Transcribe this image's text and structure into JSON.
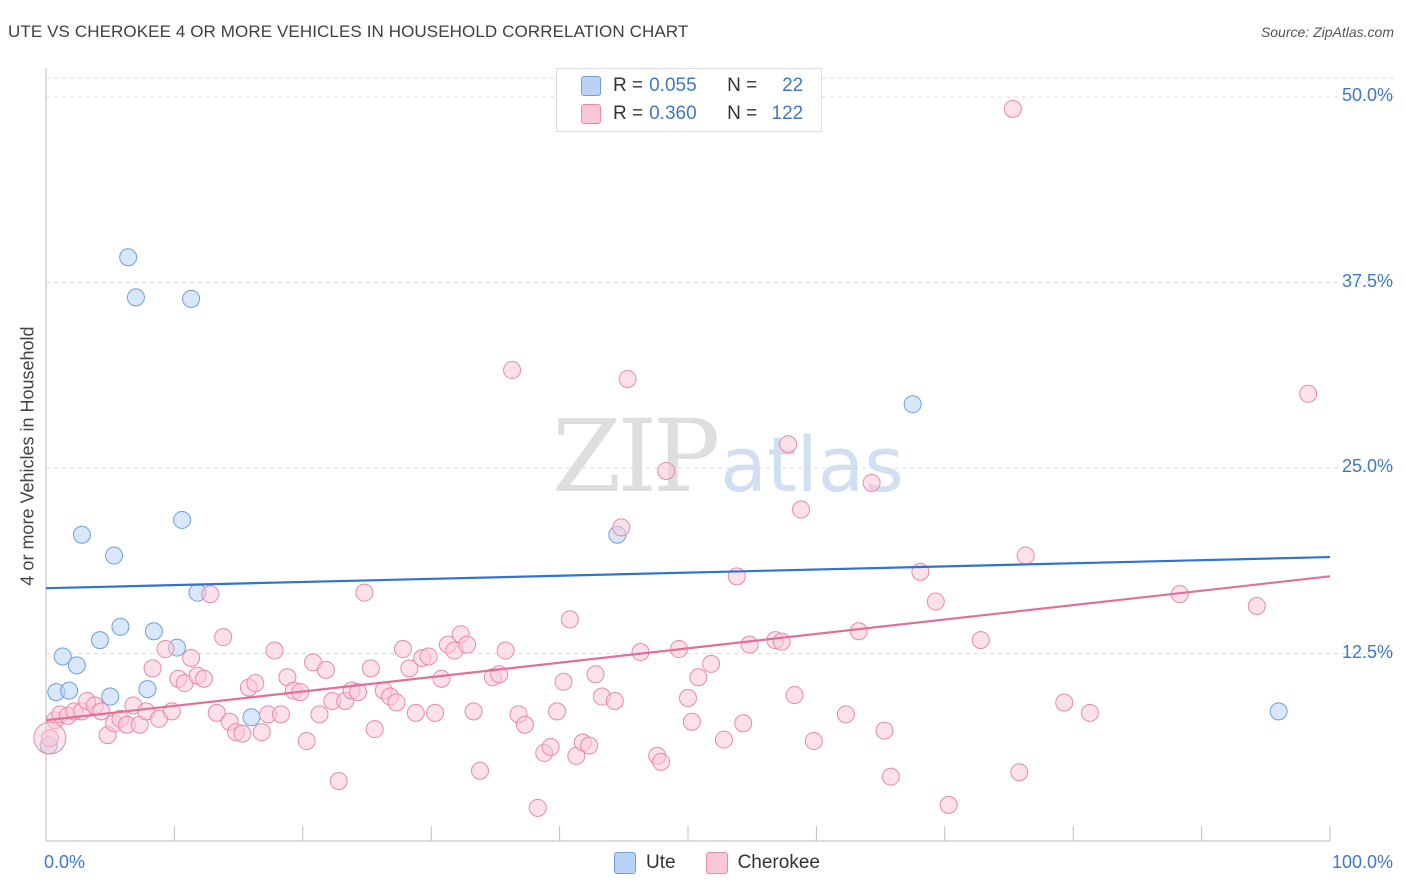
{
  "header": {
    "title": "UTE VS CHEROKEE 4 OR MORE VEHICLES IN HOUSEHOLD CORRELATION CHART",
    "source": "Source: ZipAtlas.com"
  },
  "watermark": {
    "zip": "ZIP",
    "atlas": "atlas"
  },
  "legend": {
    "r_label": "R =",
    "n_label": "N =",
    "ute": {
      "name": "Ute",
      "r": "0.055",
      "n": "22"
    },
    "cherokee": {
      "name": "Cherokee",
      "r": "0.360",
      "n": "122"
    }
  },
  "colors": {
    "ute_fill": "#b9d3f6",
    "ute_stroke": "#6d9fdc",
    "ute_line": "#2f74d0",
    "cherokee_fill": "#f9c8d8",
    "cherokee_stroke": "#e88aa8",
    "cherokee_line": "#e0709a",
    "tick_text": "#3f78c8",
    "grid": "#dcdcdc"
  },
  "chart_data": {
    "type": "scatter",
    "title": "UTE VS CHEROKEE 4 OR MORE VEHICLES IN HOUSEHOLD CORRELATION CHART",
    "xlabel": "",
    "ylabel": "4 or more Vehicles in Household",
    "xlim": [
      0,
      100
    ],
    "ylim": [
      0,
      51
    ],
    "x_tick_labels": [
      "0.0%",
      "100.0%"
    ],
    "y_ticks": [
      12.5,
      25.0,
      37.5,
      50.0
    ],
    "y_tick_labels": [
      "12.5%",
      "25.0%",
      "37.5%",
      "50.0%"
    ],
    "grid": true,
    "legend_position": "top-center",
    "series": [
      {
        "name": "Ute",
        "r": 0.055,
        "n": 22,
        "trend": {
          "x": [
            0,
            100
          ],
          "y": [
            16.9,
            19.0
          ]
        },
        "points": [
          [
            0.2,
            6.3
          ],
          [
            0.8,
            9.9
          ],
          [
            1.3,
            12.3
          ],
          [
            1.8,
            10.0
          ],
          [
            2.4,
            11.7
          ],
          [
            2.8,
            20.5
          ],
          [
            4.2,
            13.4
          ],
          [
            5.0,
            9.6
          ],
          [
            5.3,
            19.1
          ],
          [
            5.8,
            14.3
          ],
          [
            6.4,
            39.2
          ],
          [
            7.0,
            36.5
          ],
          [
            7.9,
            10.1
          ],
          [
            8.4,
            14.0
          ],
          [
            10.2,
            12.9
          ],
          [
            10.6,
            21.5
          ],
          [
            11.3,
            36.4
          ],
          [
            11.8,
            16.6
          ],
          [
            16.0,
            8.2
          ],
          [
            44.5,
            20.5
          ],
          [
            67.5,
            29.3
          ],
          [
            96.0,
            8.6
          ]
        ]
      },
      {
        "name": "Cherokee",
        "r": 0.36,
        "n": 122,
        "trend": {
          "x": [
            0,
            100
          ],
          "y": [
            8.0,
            17.7
          ]
        },
        "points": [
          [
            0.3,
            6.8
          ],
          [
            0.7,
            8.0
          ],
          [
            1.1,
            8.4
          ],
          [
            1.7,
            8.3
          ],
          [
            2.2,
            8.6
          ],
          [
            2.8,
            8.6
          ],
          [
            3.2,
            9.3
          ],
          [
            3.8,
            9.0
          ],
          [
            4.3,
            8.6
          ],
          [
            4.8,
            7.0
          ],
          [
            5.3,
            7.8
          ],
          [
            5.8,
            8.1
          ],
          [
            6.3,
            7.7
          ],
          [
            6.8,
            9.0
          ],
          [
            7.3,
            7.7
          ],
          [
            7.8,
            8.6
          ],
          [
            8.3,
            11.5
          ],
          [
            8.8,
            8.1
          ],
          [
            9.3,
            12.8
          ],
          [
            9.8,
            8.6
          ],
          [
            10.3,
            10.8
          ],
          [
            10.8,
            10.5
          ],
          [
            11.3,
            12.2
          ],
          [
            11.8,
            11.0
          ],
          [
            12.3,
            10.8
          ],
          [
            12.8,
            16.5
          ],
          [
            13.3,
            8.5
          ],
          [
            13.8,
            13.6
          ],
          [
            14.3,
            7.9
          ],
          [
            14.8,
            7.2
          ],
          [
            15.3,
            7.1
          ],
          [
            15.8,
            10.2
          ],
          [
            16.3,
            10.5
          ],
          [
            16.8,
            7.2
          ],
          [
            17.3,
            8.4
          ],
          [
            17.8,
            12.7
          ],
          [
            18.3,
            8.4
          ],
          [
            18.8,
            10.9
          ],
          [
            19.3,
            10.0
          ],
          [
            19.8,
            9.9
          ],
          [
            20.3,
            6.6
          ],
          [
            20.8,
            11.9
          ],
          [
            21.3,
            8.4
          ],
          [
            21.8,
            11.4
          ],
          [
            22.3,
            9.3
          ],
          [
            22.8,
            3.9
          ],
          [
            23.3,
            9.3
          ],
          [
            23.8,
            10.0
          ],
          [
            24.3,
            9.9
          ],
          [
            24.8,
            16.6
          ],
          [
            25.3,
            11.5
          ],
          [
            25.6,
            7.4
          ],
          [
            26.3,
            10.0
          ],
          [
            26.8,
            9.6
          ],
          [
            27.3,
            9.2
          ],
          [
            27.8,
            12.8
          ],
          [
            28.3,
            11.5
          ],
          [
            28.8,
            8.5
          ],
          [
            29.3,
            12.2
          ],
          [
            29.8,
            12.3
          ],
          [
            30.3,
            8.5
          ],
          [
            30.8,
            10.8
          ],
          [
            31.3,
            13.1
          ],
          [
            31.8,
            12.7
          ],
          [
            32.3,
            13.8
          ],
          [
            32.8,
            13.1
          ],
          [
            33.3,
            8.6
          ],
          [
            33.8,
            4.6
          ],
          [
            34.8,
            10.9
          ],
          [
            35.3,
            11.1
          ],
          [
            35.8,
            12.7
          ],
          [
            36.3,
            31.6
          ],
          [
            36.8,
            8.4
          ],
          [
            37.3,
            7.7
          ],
          [
            38.3,
            2.1
          ],
          [
            38.8,
            5.8
          ],
          [
            39.3,
            6.2
          ],
          [
            39.8,
            8.6
          ],
          [
            40.3,
            10.6
          ],
          [
            40.8,
            14.8
          ],
          [
            41.3,
            5.6
          ],
          [
            41.8,
            6.5
          ],
          [
            42.3,
            6.3
          ],
          [
            42.8,
            11.1
          ],
          [
            43.3,
            9.6
          ],
          [
            44.3,
            9.3
          ],
          [
            44.8,
            21.0
          ],
          [
            45.3,
            31.0
          ],
          [
            46.3,
            12.6
          ],
          [
            47.6,
            5.6
          ],
          [
            47.9,
            5.2
          ],
          [
            48.3,
            24.8
          ],
          [
            49.3,
            12.8
          ],
          [
            50.0,
            9.5
          ],
          [
            50.3,
            7.9
          ],
          [
            50.8,
            10.9
          ],
          [
            51.8,
            11.8
          ],
          [
            52.8,
            6.7
          ],
          [
            53.8,
            17.7
          ],
          [
            54.3,
            7.8
          ],
          [
            54.8,
            13.1
          ],
          [
            56.8,
            13.4
          ],
          [
            57.3,
            13.3
          ],
          [
            57.8,
            26.6
          ],
          [
            58.3,
            9.7
          ],
          [
            58.8,
            22.2
          ],
          [
            59.8,
            6.6
          ],
          [
            62.3,
            8.4
          ],
          [
            63.3,
            14.0
          ],
          [
            64.3,
            24.0
          ],
          [
            65.3,
            7.3
          ],
          [
            65.8,
            4.2
          ],
          [
            68.1,
            18.0
          ],
          [
            69.3,
            16.0
          ],
          [
            70.3,
            2.3
          ],
          [
            72.8,
            13.4
          ],
          [
            75.3,
            49.2
          ],
          [
            75.8,
            4.5
          ],
          [
            76.3,
            19.1
          ],
          [
            79.3,
            9.2
          ],
          [
            81.3,
            8.5
          ],
          [
            88.3,
            16.5
          ],
          [
            94.3,
            15.7
          ],
          [
            98.3,
            30.0
          ]
        ]
      }
    ]
  }
}
